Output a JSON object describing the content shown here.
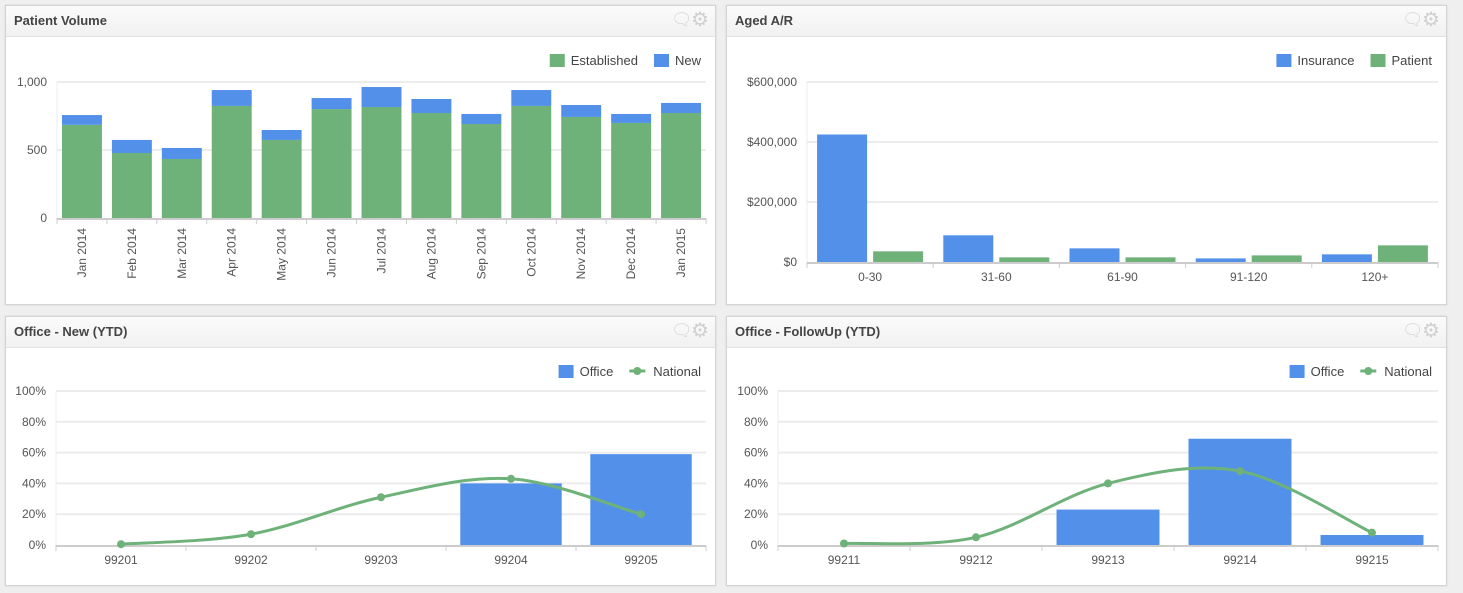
{
  "colors": {
    "blue": "#5290e9",
    "green": "#6eb27a",
    "grid": "#ececec",
    "axis": "#cccccc",
    "text": "#555555"
  },
  "panels": [
    {
      "title": "Patient Volume",
      "icons": [
        "comment-icon",
        "gear-icon"
      ]
    },
    {
      "title": "Aged A/R",
      "icons": [
        "comment-icon",
        "gear-icon"
      ]
    },
    {
      "title": "Office - New (YTD)",
      "icons": [
        "comment-icon",
        "gear-icon"
      ]
    },
    {
      "title": "Office - FollowUp (YTD)",
      "icons": [
        "comment-icon",
        "gear-icon"
      ]
    }
  ],
  "chart_data": [
    {
      "type": "bar",
      "stacked": true,
      "title": "Patient Volume",
      "categories": [
        "Jan 2014",
        "Feb 2014",
        "Mar 2014",
        "Apr 2014",
        "May 2014",
        "Jun 2014",
        "Jul 2014",
        "Aug 2014",
        "Sep 2014",
        "Oct 2014",
        "Nov 2014",
        "Dec 2014",
        "Jan 2015"
      ],
      "series": [
        {
          "name": "Established",
          "color": "#6eb27a",
          "values": [
            685,
            478,
            434,
            824,
            574,
            801,
            816,
            772,
            691,
            824,
            743,
            699,
            772
          ]
        },
        {
          "name": "New",
          "color": "#5290e9",
          "values": [
            72,
            96,
            81,
            117,
            73,
            81,
            147,
            103,
            74,
            117,
            88,
            66,
            74
          ]
        }
      ],
      "legend_order": [
        "Established",
        "New"
      ],
      "ylim": [
        0,
        1000
      ],
      "yticks": [
        0,
        500,
        1000
      ],
      "ytick_labels": [
        "0",
        "500",
        "1,000"
      ],
      "grid": true,
      "legend": "top-right",
      "xlabel_rotation": -90
    },
    {
      "type": "bar",
      "stacked": false,
      "title": "Aged A/R",
      "categories": [
        "0-30",
        "31-60",
        "61-90",
        "91-120",
        "120+"
      ],
      "series": [
        {
          "name": "Insurance",
          "color": "#5290e9",
          "values": [
            425000,
            89000,
            45500,
            12000,
            25500
          ]
        },
        {
          "name": "Patient",
          "color": "#6eb27a",
          "values": [
            35500,
            15500,
            15500,
            22000,
            55500
          ]
        }
      ],
      "legend_order": [
        "Insurance",
        "Patient"
      ],
      "ylim": [
        0,
        600000
      ],
      "yticks": [
        0,
        200000,
        400000,
        600000
      ],
      "ytick_labels": [
        "$0",
        "$200,000",
        "$400,000",
        "$600,000"
      ],
      "grid": true,
      "legend": "top-right"
    },
    {
      "type": "bar+line",
      "title": "Office - New (YTD)",
      "categories": [
        "99201",
        "99202",
        "99203",
        "99204",
        "99205"
      ],
      "series": [
        {
          "name": "Office",
          "kind": "bar",
          "color": "#5290e9",
          "values": [
            0,
            0,
            0,
            40,
            59
          ]
        },
        {
          "name": "National",
          "kind": "line",
          "color": "#6eb27a",
          "values": [
            0.5,
            7,
            31,
            43,
            20
          ]
        }
      ],
      "legend_order": [
        "Office",
        "National"
      ],
      "ylim": [
        0,
        100
      ],
      "yticks": [
        0,
        20,
        40,
        60,
        80,
        100
      ],
      "ytick_labels": [
        "0%",
        "20%",
        "40%",
        "60%",
        "80%",
        "100%"
      ],
      "grid": true,
      "legend": "top-right"
    },
    {
      "type": "bar+line",
      "title": "Office - FollowUp (YTD)",
      "categories": [
        "99211",
        "99212",
        "99213",
        "99214",
        "99215"
      ],
      "series": [
        {
          "name": "Office",
          "kind": "bar",
          "color": "#5290e9",
          "values": [
            0,
            0,
            23,
            69,
            6.5
          ]
        },
        {
          "name": "National",
          "kind": "line",
          "color": "#6eb27a",
          "values": [
            1,
            5,
            40,
            48,
            8
          ]
        }
      ],
      "legend_order": [
        "Office",
        "National"
      ],
      "ylim": [
        0,
        100
      ],
      "yticks": [
        0,
        20,
        40,
        60,
        80,
        100
      ],
      "ytick_labels": [
        "0%",
        "20%",
        "40%",
        "60%",
        "80%",
        "100%"
      ],
      "grid": true,
      "legend": "top-right"
    }
  ]
}
